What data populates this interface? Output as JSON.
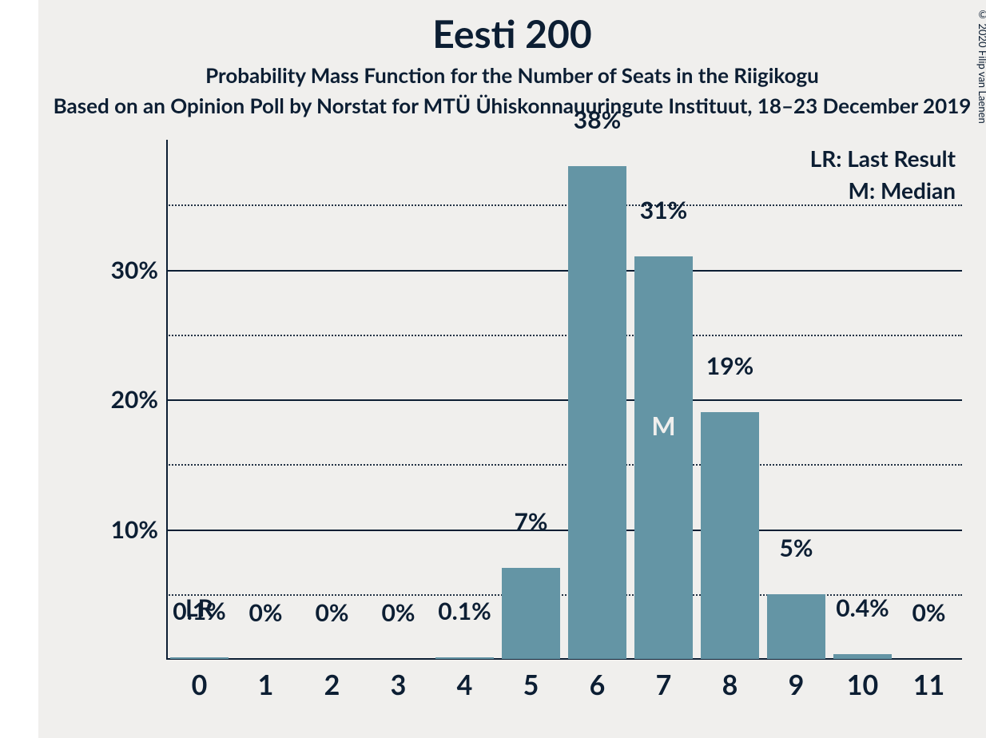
{
  "title": "Eesti 200",
  "subtitle": "Probability Mass Function for the Number of Seats in the Riigikogu",
  "subsubtitle": "Based on an Opinion Poll by Norstat for MTÜ Ühiskonnauuringute Instituut, 18–23 December 2019",
  "copyright": "© 2020 Filip van Laenen",
  "legend_lr": "LR: Last Result",
  "legend_m": "M: Median",
  "chart": {
    "type": "bar",
    "ymax": 40,
    "major_ticks": [
      10,
      20,
      30
    ],
    "minor_ticks": [
      5,
      15,
      25,
      35
    ],
    "bar_color": "#6495a5",
    "text_color": "#0c1e33",
    "background_color": "#f0efed",
    "bar_width_ratio": 0.88,
    "categories": [
      "0",
      "1",
      "2",
      "3",
      "4",
      "5",
      "6",
      "7",
      "8",
      "9",
      "10",
      "11"
    ],
    "values": [
      0.1,
      0,
      0,
      0,
      0.1,
      7,
      38,
      31,
      19,
      5,
      0.4,
      0
    ],
    "value_labels": [
      "0.1%",
      "0%",
      "0%",
      "0%",
      "0.1%",
      "7%",
      "38%",
      "31%",
      "19%",
      "5%",
      "0.4%",
      "0%"
    ],
    "lr_index": 0,
    "lr_text": "LR",
    "median_index": 7,
    "median_text": "M"
  }
}
